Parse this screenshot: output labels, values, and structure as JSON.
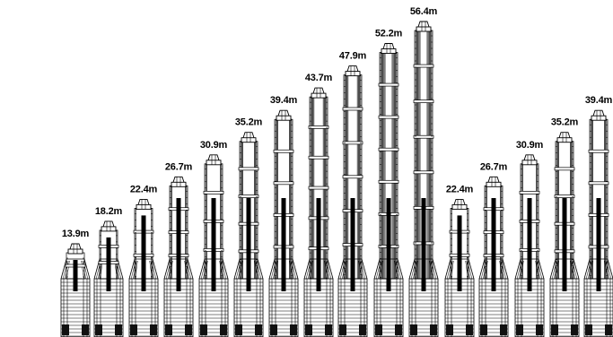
{
  "diagram": {
    "towers": [
      {
        "label": "13.9m",
        "height_m": 13.9,
        "sections": 1
      },
      {
        "label": "18.2m",
        "height_m": 18.2,
        "sections": 2
      },
      {
        "label": "22.4m",
        "height_m": 22.4,
        "sections": 2
      },
      {
        "label": "26.7m",
        "height_m": 26.7,
        "sections": 3
      },
      {
        "label": "30.9m",
        "height_m": 30.9,
        "sections": 3
      },
      {
        "label": "35.2m",
        "height_m": 35.2,
        "sections": 4
      },
      {
        "label": "39.4m",
        "height_m": 39.4,
        "sections": 4
      },
      {
        "label": "43.7m",
        "height_m": 43.7,
        "sections": 5
      },
      {
        "label": "47.9m",
        "height_m": 47.9,
        "sections": 5
      },
      {
        "label": "52.2m",
        "height_m": 52.2,
        "sections": 6
      },
      {
        "label": "56.4m",
        "height_m": 56.4,
        "sections": 6
      },
      {
        "label": "22.4m",
        "height_m": 22.4,
        "sections": 2
      },
      {
        "label": "26.7m",
        "height_m": 26.7,
        "sections": 3
      },
      {
        "label": "30.9m",
        "height_m": 30.9,
        "sections": 3
      },
      {
        "label": "35.2m",
        "height_m": 35.2,
        "sections": 4
      },
      {
        "label": "39.4m",
        "height_m": 39.4,
        "sections": 4
      }
    ]
  }
}
